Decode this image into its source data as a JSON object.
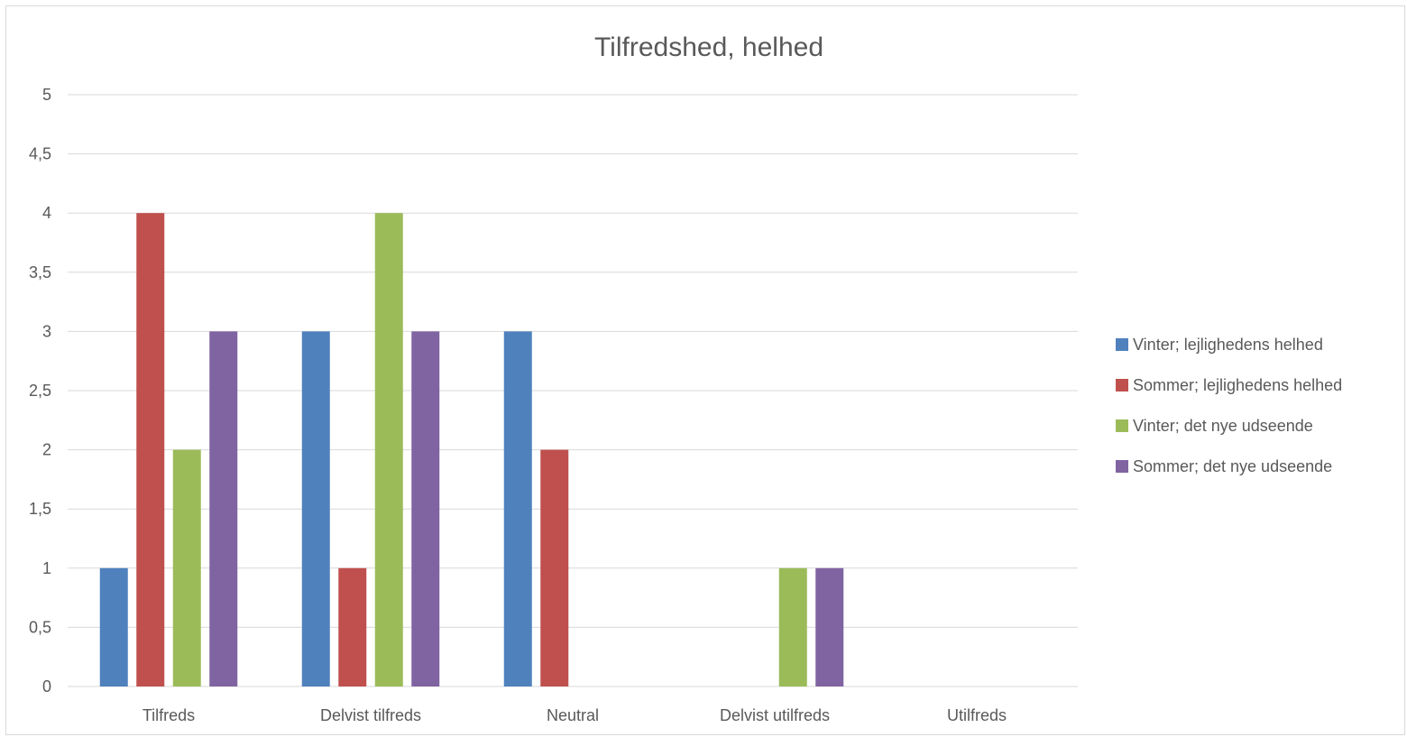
{
  "chart_data": {
    "type": "bar",
    "title": "Tilfredshed, helhed",
    "xlabel": "",
    "ylabel": "",
    "categories": [
      "Tilfreds",
      "Delvist tilfreds",
      "Neutral",
      "Delvist utilfreds",
      "Utilfreds"
    ],
    "series": [
      {
        "name": "Vinter; lejlighedens helhed",
        "color": "#4f81bd",
        "values": [
          1,
          3,
          3,
          0,
          0
        ]
      },
      {
        "name": "Sommer; lejlighedens helhed",
        "color": "#c0504d",
        "values": [
          4,
          1,
          2,
          0,
          0
        ]
      },
      {
        "name": "Vinter; det nye udseende",
        "color": "#9bbb59",
        "values": [
          2,
          4,
          0,
          1,
          0
        ]
      },
      {
        "name": "Sommer; det nye udseende",
        "color": "#8064a2",
        "values": [
          3,
          3,
          0,
          1,
          0
        ]
      }
    ],
    "ylim": [
      0,
      5
    ],
    "ytick_labels": [
      "0",
      "0,5",
      "1",
      "1,5",
      "2",
      "2,5",
      "3",
      "3,5",
      "4",
      "4,5",
      "5"
    ],
    "grid": true,
    "legend_position": "right"
  }
}
